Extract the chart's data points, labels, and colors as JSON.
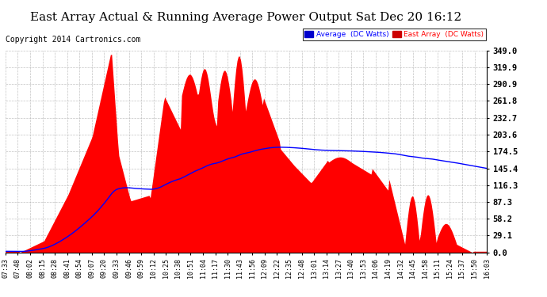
{
  "title": "East Array Actual & Running Average Power Output Sat Dec 20 16:12",
  "copyright": "Copyright 2014 Cartronics.com",
  "ylabel_right_ticks": [
    0.0,
    29.1,
    58.2,
    87.3,
    116.3,
    145.4,
    174.5,
    203.6,
    232.7,
    261.8,
    290.9,
    319.9,
    349.0
  ],
  "ymax": 349.0,
  "ymin": 0.0,
  "area_color": "#ff0000",
  "line_color": "#0000ff",
  "background_color": "#ffffff",
  "grid_color": "#aaaaaa",
  "legend_avg_color": "#0000cc",
  "legend_east_color": "#cc0000",
  "title_fontsize": 11,
  "copyright_fontsize": 7,
  "x_labels": [
    "07:33",
    "07:48",
    "08:02",
    "08:15",
    "08:28",
    "08:41",
    "08:54",
    "09:07",
    "09:20",
    "09:33",
    "09:46",
    "09:59",
    "10:12",
    "10:25",
    "10:38",
    "10:51",
    "11:04",
    "11:17",
    "11:30",
    "11:43",
    "11:56",
    "12:09",
    "12:22",
    "12:35",
    "12:48",
    "13:01",
    "13:14",
    "13:27",
    "13:40",
    "13:53",
    "14:06",
    "14:19",
    "14:32",
    "14:45",
    "14:58",
    "15:11",
    "15:24",
    "15:37",
    "15:50",
    "16:03"
  ]
}
